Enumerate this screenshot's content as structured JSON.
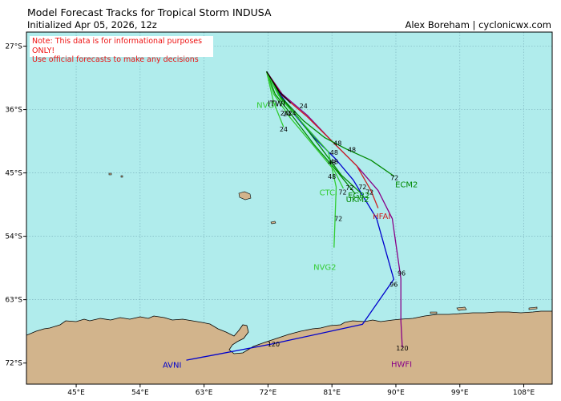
{
  "header": {
    "title": "Model Forecast Tracks  for Tropical Storm INDUSA",
    "subtitle": "Initialized Apr 05, 2026, 12z",
    "credit": "Alex Boreham | cyclonicwx.com"
  },
  "notice": {
    "line1": "Note: This data is for informational purposes ONLY!",
    "line2": "Use official forecasts to make any decisions"
  },
  "axes": {
    "lat_ticks": [
      "27°S",
      "36°S",
      "45°S",
      "54°S",
      "63°S",
      "72°S"
    ],
    "lon_ticks": [
      "45°E",
      "54°E",
      "63°E",
      "72°E",
      "81°E",
      "90°E",
      "99°E",
      "108°E"
    ]
  },
  "colors": {
    "ocean": "#b0ecec",
    "land": "#d2b48c",
    "grid": "#7fb6c0",
    "notice_text": "#ee1111"
  },
  "chart_data": {
    "type": "map",
    "extent": {
      "lon": [
        38,
        112
      ],
      "lat": [
        -75,
        -25
      ]
    },
    "models": [
      {
        "name": "AVNI",
        "color": "#0000cc",
        "label_lonlat": [
          58.5,
          -72.2
        ],
        "track": [
          [
            71.8,
            -30.6
          ],
          [
            73.5,
            -33.5
          ],
          [
            75.8,
            -36.8
          ],
          [
            78.5,
            -40
          ],
          [
            81.5,
            -43
          ],
          [
            84,
            -46
          ],
          [
            87.3,
            -51.5
          ],
          [
            89.7,
            -60.1
          ],
          [
            85.3,
            -66.5
          ],
          [
            72.5,
            -69.3
          ],
          [
            60.5,
            -71.6
          ]
        ],
        "hours": [
          {
            "text": "96",
            "lon": 89.7,
            "lat": -60.8
          },
          {
            "text": "120",
            "lon": 72.8,
            "lat": -69.3
          }
        ]
      },
      {
        "name": "HWFI",
        "color": "#880088",
        "label_lonlat": [
          90.8,
          -72.1
        ],
        "track": [
          [
            71.8,
            -30.6
          ],
          [
            74,
            -33.8
          ],
          [
            77.5,
            -36.8
          ],
          [
            81,
            -40.5
          ],
          [
            84.5,
            -44
          ],
          [
            87.5,
            -47.5
          ],
          [
            89.5,
            -51.5
          ],
          [
            90.7,
            -60
          ],
          [
            90.7,
            -66
          ],
          [
            90.9,
            -69.8
          ]
        ],
        "hours": [
          {
            "text": "96",
            "lon": 90.8,
            "lat": -59.2
          },
          {
            "text": "120",
            "lon": 90.9,
            "lat": -69.9
          }
        ]
      },
      {
        "name": "HFAI",
        "color": "#cc2222",
        "label_lonlat": [
          88,
          -51.1
        ],
        "track": [
          [
            71.8,
            -30.6
          ],
          [
            74,
            -34
          ],
          [
            77.5,
            -37
          ],
          [
            81,
            -40.5
          ],
          [
            84.5,
            -44
          ],
          [
            86.5,
            -47.5
          ],
          [
            87.5,
            -50
          ]
        ],
        "hours": [
          {
            "text": "48",
            "lon": 81.8,
            "lat": -40.8
          },
          {
            "text": "72",
            "lon": 86.3,
            "lat": -47.7
          }
        ]
      },
      {
        "name": "ECM2",
        "color": "#008800",
        "label_lonlat": [
          91.5,
          -46.6
        ],
        "track": [
          [
            71.8,
            -30.6
          ],
          [
            73.8,
            -34.2
          ],
          [
            77,
            -37.6
          ],
          [
            80,
            -40
          ],
          [
            83,
            -41.6
          ],
          [
            86.5,
            -43.2
          ],
          [
            89.8,
            -45.5
          ]
        ],
        "hours": [
          {
            "text": "24",
            "lon": 77,
            "lat": -35.5
          },
          {
            "text": "48",
            "lon": 83.8,
            "lat": -41.7
          },
          {
            "text": "72",
            "lon": 89.8,
            "lat": -45.7
          }
        ]
      },
      {
        "name": "EGR2",
        "color": "#008800",
        "label_lonlat": [
          84.8,
          -48.1
        ],
        "track": [
          [
            71.8,
            -30.6
          ],
          [
            73.5,
            -34
          ],
          [
            76.3,
            -37.2
          ],
          [
            79.5,
            -41.5
          ],
          [
            82.3,
            -45.3
          ],
          [
            85,
            -47.8
          ]
        ],
        "hours": [
          {
            "text": "24",
            "lon": 75.4,
            "lat": -36.5
          },
          {
            "text": "48",
            "lon": 81,
            "lat": -43.5
          },
          {
            "text": "72",
            "lon": 83.5,
            "lat": -47.1
          }
        ]
      },
      {
        "name": "UKM2",
        "color": "#008800",
        "label_lonlat": [
          84.6,
          -48.7
        ],
        "track": [
          [
            71.8,
            -30.6
          ],
          [
            73,
            -33.8
          ],
          [
            75.5,
            -37
          ],
          [
            78.5,
            -41
          ],
          [
            81.5,
            -44.5
          ],
          [
            84.3,
            -48
          ]
        ],
        "hours": [
          {
            "text": "24",
            "lon": 74.3,
            "lat": -36.5
          },
          {
            "text": "48",
            "lon": 81,
            "lat": -45.5
          },
          {
            "text": "72",
            "lon": 82.5,
            "lat": -47.7
          }
        ]
      },
      {
        "name": "CTCI",
        "color": "#33cc33",
        "label_lonlat": [
          80.5,
          -47.7
        ],
        "track": [
          [
            71.8,
            -30.6
          ],
          [
            72.8,
            -33.8
          ],
          [
            75,
            -37
          ],
          [
            78.3,
            -41
          ],
          [
            81.3,
            -44.6
          ],
          [
            82.6,
            -47.2
          ]
        ],
        "hours": [
          {
            "text": "24",
            "lon": 74.7,
            "lat": -36.6
          },
          {
            "text": "48",
            "lon": 81.3,
            "lat": -43.4
          },
          {
            "text": "72",
            "lon": 85.3,
            "lat": -47
          }
        ]
      },
      {
        "name": "NVGI",
        "color": "#33cc33",
        "label_lonlat": [
          71.8,
          -35.3
        ],
        "track": [
          [
            71.8,
            -30.6
          ],
          [
            72.8,
            -35
          ],
          [
            74.2,
            -38.5
          ]
        ],
        "hours": [
          {
            "text": "24",
            "lon": 74.2,
            "lat": -38.8
          }
        ]
      },
      {
        "name": "NVG2",
        "color": "#33cc33",
        "label_lonlat": [
          80,
          -58.3
        ],
        "track": [
          [
            71.8,
            -30.6
          ],
          [
            73.8,
            -34.5
          ],
          [
            76.5,
            -37.5
          ],
          [
            80.5,
            -42
          ],
          [
            81.6,
            -47
          ],
          [
            81.3,
            -55.6
          ]
        ],
        "hours": [
          {
            "text": "48",
            "lon": 81.3,
            "lat": -42.1
          },
          {
            "text": "72",
            "lon": 81.9,
            "lat": -51.5
          }
        ]
      },
      {
        "name": "ITWI",
        "color": "#000000",
        "label_lonlat": [
          73.2,
          -35.1
        ],
        "track": [
          [
            71.8,
            -30.6
          ],
          [
            73.6,
            -33.5
          ],
          [
            75.2,
            -35.1
          ]
        ],
        "hours": []
      }
    ]
  }
}
